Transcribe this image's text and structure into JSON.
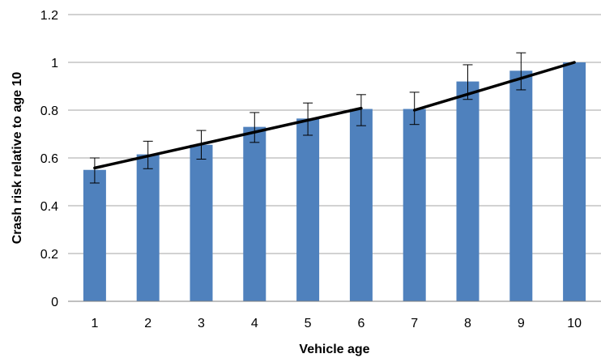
{
  "chart_data": {
    "type": "bar",
    "xlabel": "Vehicle age",
    "ylabel": "Crash risk relative to age 10",
    "categories": [
      "1",
      "2",
      "3",
      "4",
      "5",
      "6",
      "7",
      "8",
      "9",
      "10"
    ],
    "series": [
      {
        "values": [
          0.55,
          0.615,
          0.655,
          0.73,
          0.765,
          0.805,
          0.805,
          0.92,
          0.965,
          1.0
        ],
        "error_low": [
          0.495,
          0.555,
          0.595,
          0.665,
          0.695,
          0.735,
          0.74,
          0.845,
          0.885,
          1.0
        ],
        "error_high": [
          0.6,
          0.67,
          0.715,
          0.79,
          0.83,
          0.865,
          0.875,
          0.99,
          1.04,
          1.0
        ]
      }
    ],
    "trend_segments": [
      {
        "from": "1",
        "to": "6",
        "y_start": 0.558,
        "y_end": 0.808
      },
      {
        "from": "7",
        "to": "10",
        "y_start": 0.8,
        "y_end": 1.0
      }
    ],
    "ylim": [
      0,
      1.2
    ],
    "yticks": [
      "0",
      "0.2",
      "0.4",
      "0.6",
      "0.8",
      "1",
      "1.2"
    ],
    "grid": true,
    "colors": {
      "bar": "#4f81bd",
      "trend": "#000000",
      "grid": "#a6a6a6",
      "error_bar": "#000000"
    }
  }
}
